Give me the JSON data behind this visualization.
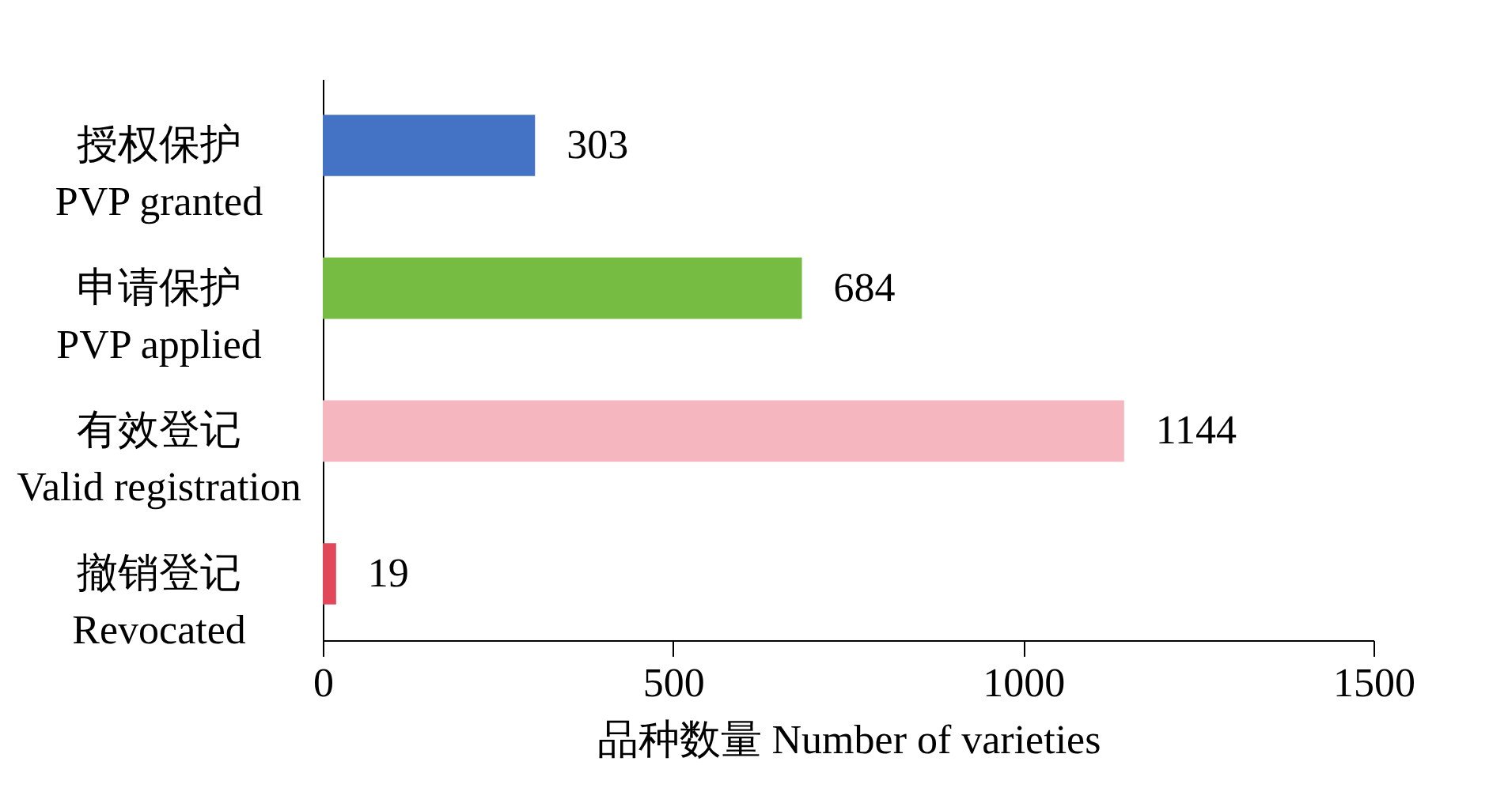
{
  "chart_data": {
    "type": "bar",
    "orientation": "horizontal",
    "xlabel": "品种数量 Number of varieties",
    "categories": [
      "授权保护\nPVP granted",
      "申请保护\nPVP applied",
      "有效登记\nValid registration",
      "撤销登记\nRevocated"
    ],
    "values": [
      303,
      684,
      1144,
      19
    ],
    "colors": [
      "#4472c4",
      "#77bc42",
      "#f5b6c0",
      "#e2465a"
    ],
    "xlim": [
      0,
      1500
    ],
    "xticks": [
      0,
      500,
      1000,
      1500
    ],
    "grid": false,
    "data_labels": true
  }
}
